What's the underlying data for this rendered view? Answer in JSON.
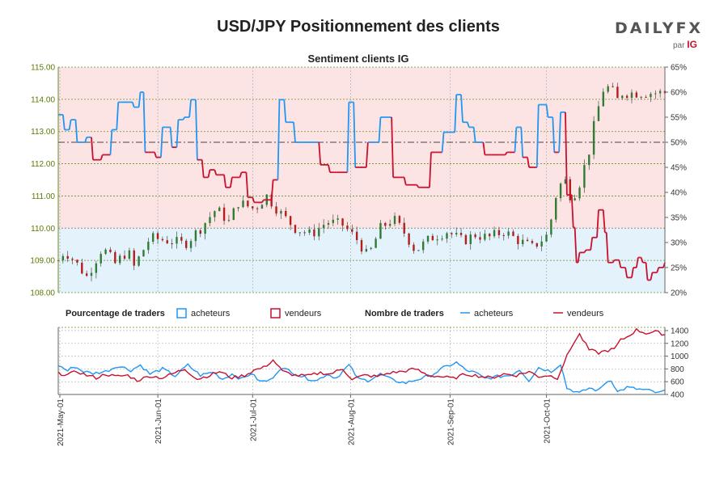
{
  "header": {
    "title": "USD/JPY Positionnement des clients",
    "logo_text": "DAILYFX",
    "logo_sub": "par",
    "logo_ig": "IG"
  },
  "colors": {
    "buyers": "#2196f3",
    "sellers": "#c8102e",
    "candle_up": "#2e7d32",
    "candle_down": "#b71c1c",
    "bg_top": "#fde4e4",
    "bg_bottom": "#e4f2fb",
    "axis_left": "#5a7a00"
  },
  "chart_data": [
    {
      "type": "candlestick+line",
      "title": "Sentiment clients IG",
      "price_axis": {
        "ylim": [
          108.0,
          115.0
        ],
        "ticks": [
          "108.00",
          "109.00",
          "110.00",
          "111.00",
          "112.00",
          "113.00",
          "114.00",
          "115.00"
        ]
      },
      "sentiment_axis": {
        "ylim": [
          20,
          65
        ],
        "ticks": [
          "20%",
          "25%",
          "30%",
          "35%",
          "40%",
          "45%",
          "50%",
          "55%",
          "60%",
          "65%"
        ]
      },
      "reference_price": 110.0,
      "reference_sentiment": 50,
      "x_dates": [
        "2021-May-01",
        "2021-Jun-01",
        "2021-Jul-01",
        "2021-Aug-01",
        "2021-Sep-01",
        "2021-Oct-01"
      ],
      "price_close_knots": [
        [
          0,
          109.0
        ],
        [
          4,
          109.3
        ],
        [
          10,
          109.0
        ],
        [
          18,
          108.5
        ],
        [
          28,
          109.4
        ],
        [
          36,
          108.9
        ],
        [
          44,
          109.3
        ],
        [
          48,
          108.8
        ],
        [
          58,
          109.7
        ],
        [
          72,
          109.6
        ],
        [
          80,
          109.5
        ],
        [
          90,
          110.0
        ],
        [
          100,
          110.6
        ],
        [
          108,
          110.2
        ],
        [
          114,
          110.8
        ],
        [
          124,
          110.6
        ],
        [
          132,
          111.0
        ],
        [
          140,
          110.5
        ],
        [
          150,
          110.0
        ],
        [
          160,
          109.8
        ],
        [
          170,
          110.2
        ],
        [
          180,
          110.1
        ],
        [
          190,
          109.6
        ],
        [
          196,
          109.1
        ],
        [
          204,
          110.0
        ],
        [
          212,
          110.3
        ],
        [
          220,
          109.8
        ],
        [
          226,
          109.3
        ],
        [
          236,
          109.7
        ],
        [
          246,
          109.9
        ],
        [
          256,
          109.6
        ],
        [
          264,
          109.8
        ],
        [
          272,
          109.7
        ],
        [
          282,
          109.9
        ],
        [
          292,
          109.6
        ],
        [
          300,
          109.4
        ],
        [
          305,
          109.6
        ],
        [
          310,
          109.8
        ],
        [
          315,
          111.0
        ],
        [
          320,
          111.6
        ],
        [
          325,
          110.9
        ],
        [
          330,
          111.4
        ],
        [
          336,
          112.4
        ],
        [
          340,
          113.4
        ],
        [
          345,
          114.3
        ],
        [
          350,
          114.4
        ],
        [
          353,
          113.9
        ],
        [
          357,
          114.2
        ]
      ],
      "sentiment_buyers_pct_knots": [
        [
          0,
          55.5
        ],
        [
          4,
          52.5
        ],
        [
          8,
          54.5
        ],
        [
          12,
          50.0
        ],
        [
          18,
          51.0
        ],
        [
          22,
          46.5
        ],
        [
          28,
          47.5
        ],
        [
          34,
          52.5
        ],
        [
          38,
          58.0
        ],
        [
          44,
          58.0
        ],
        [
          48,
          57.0
        ],
        [
          52,
          60.0
        ],
        [
          55,
          48.0
        ],
        [
          62,
          47.0
        ],
        [
          66,
          53.0
        ],
        [
          72,
          49.0
        ],
        [
          76,
          54.5
        ],
        [
          80,
          55.0
        ],
        [
          84,
          58.5
        ],
        [
          88,
          46.5
        ],
        [
          92,
          43.0
        ],
        [
          96,
          44.5
        ],
        [
          100,
          43.5
        ],
        [
          106,
          41.0
        ],
        [
          110,
          43.0
        ],
        [
          116,
          44.0
        ],
        [
          120,
          39.0
        ],
        [
          124,
          38.0
        ],
        [
          130,
          38.5
        ],
        [
          136,
          42.5
        ],
        [
          140,
          58.5
        ],
        [
          144,
          54.0
        ],
        [
          150,
          50.0
        ],
        [
          158,
          50.0
        ],
        [
          166,
          45.5
        ],
        [
          172,
          44.0
        ],
        [
          178,
          44.0
        ],
        [
          184,
          58.0
        ],
        [
          188,
          45.0
        ],
        [
          196,
          50.0
        ],
        [
          204,
          55.0
        ],
        [
          212,
          43.0
        ],
        [
          220,
          41.5
        ],
        [
          228,
          41.0
        ],
        [
          236,
          48.0
        ],
        [
          244,
          52.0
        ],
        [
          252,
          59.5
        ],
        [
          256,
          54.0
        ],
        [
          260,
          53.0
        ],
        [
          264,
          50.0
        ],
        [
          270,
          47.5
        ],
        [
          276,
          47.5
        ],
        [
          284,
          48.0
        ],
        [
          290,
          53.0
        ],
        [
          294,
          47.0
        ],
        [
          298,
          45.0
        ],
        [
          304,
          57.5
        ],
        [
          310,
          55.0
        ],
        [
          314,
          48.0
        ],
        [
          318,
          56.0
        ],
        [
          322,
          39.5
        ],
        [
          326,
          33.0
        ],
        [
          328,
          26.0
        ],
        [
          330,
          28.0
        ],
        [
          334,
          28.5
        ],
        [
          338,
          31.0
        ],
        [
          342,
          36.5
        ],
        [
          346,
          32.0
        ],
        [
          348,
          26.0
        ],
        [
          352,
          26.5
        ],
        [
          356,
          25.0
        ],
        [
          360,
          23.0
        ],
        [
          364,
          25.0
        ],
        [
          367,
          27.0
        ],
        [
          370,
          26.0
        ],
        [
          373,
          22.5
        ],
        [
          376,
          24.0
        ],
        [
          380,
          25.0
        ],
        [
          384,
          26.0
        ]
      ]
    },
    {
      "type": "line",
      "title": "Nombre de traders",
      "ylim": [
        400,
        1450
      ],
      "ticks": [
        "400",
        "600",
        "800",
        "1000",
        "1200",
        "1400"
      ],
      "series": [
        {
          "name": "acheteurs",
          "color": "#2196f3",
          "knots": [
            [
              0,
              860
            ],
            [
              6,
              770
            ],
            [
              10,
              840
            ],
            [
              16,
              760
            ],
            [
              22,
              730
            ],
            [
              30,
              760
            ],
            [
              38,
              850
            ],
            [
              46,
              780
            ],
            [
              52,
              860
            ],
            [
              58,
              720
            ],
            [
              66,
              800
            ],
            [
              74,
              690
            ],
            [
              82,
              860
            ],
            [
              90,
              700
            ],
            [
              98,
              750
            ],
            [
              104,
              640
            ],
            [
              110,
              720
            ],
            [
              116,
              640
            ],
            [
              122,
              730
            ],
            [
              128,
              600
            ],
            [
              134,
              620
            ],
            [
              140,
              800
            ],
            [
              146,
              780
            ],
            [
              152,
              700
            ],
            [
              158,
              650
            ],
            [
              164,
              620
            ],
            [
              170,
              720
            ],
            [
              176,
              660
            ],
            [
              184,
              860
            ],
            [
              190,
              640
            ],
            [
              196,
              620
            ],
            [
              204,
              720
            ],
            [
              212,
              620
            ],
            [
              220,
              580
            ],
            [
              228,
              640
            ],
            [
              236,
              700
            ],
            [
              244,
              820
            ],
            [
              252,
              900
            ],
            [
              258,
              780
            ],
            [
              264,
              740
            ],
            [
              270,
              650
            ],
            [
              278,
              680
            ],
            [
              286,
              700
            ],
            [
              292,
              790
            ],
            [
              298,
              620
            ],
            [
              304,
              820
            ],
            [
              312,
              760
            ],
            [
              318,
              880
            ],
            [
              322,
              500
            ],
            [
              326,
              460
            ],
            [
              330,
              420
            ],
            [
              336,
              500
            ],
            [
              342,
              460
            ],
            [
              346,
              580
            ],
            [
              350,
              630
            ],
            [
              354,
              440
            ],
            [
              360,
              510
            ],
            [
              368,
              480
            ],
            [
              374,
              460
            ],
            [
              380,
              420
            ],
            [
              384,
              460
            ]
          ]
        },
        {
          "name": "vendeurs",
          "color": "#c8102e",
          "knots": [
            [
              0,
              730
            ],
            [
              6,
              710
            ],
            [
              12,
              760
            ],
            [
              18,
              700
            ],
            [
              24,
              660
            ],
            [
              30,
              720
            ],
            [
              36,
              680
            ],
            [
              44,
              700
            ],
            [
              50,
              620
            ],
            [
              58,
              690
            ],
            [
              66,
              660
            ],
            [
              72,
              720
            ],
            [
              80,
              800
            ],
            [
              88,
              640
            ],
            [
              96,
              700
            ],
            [
              102,
              760
            ],
            [
              110,
              660
            ],
            [
              118,
              700
            ],
            [
              124,
              780
            ],
            [
              130,
              820
            ],
            [
              136,
              940
            ],
            [
              142,
              760
            ],
            [
              150,
              700
            ],
            [
              158,
              690
            ],
            [
              166,
              740
            ],
            [
              172,
              720
            ],
            [
              180,
              800
            ],
            [
              186,
              640
            ],
            [
              194,
              700
            ],
            [
              202,
              680
            ],
            [
              210,
              740
            ],
            [
              218,
              760
            ],
            [
              226,
              800
            ],
            [
              234,
              700
            ],
            [
              242,
              680
            ],
            [
              250,
              650
            ],
            [
              258,
              720
            ],
            [
              266,
              690
            ],
            [
              274,
              660
            ],
            [
              282,
              720
            ],
            [
              290,
              700
            ],
            [
              298,
              760
            ],
            [
              304,
              680
            ],
            [
              310,
              700
            ],
            [
              316,
              660
            ],
            [
              322,
              1000
            ],
            [
              326,
              1200
            ],
            [
              330,
              1340
            ],
            [
              336,
              1100
            ],
            [
              342,
              1050
            ],
            [
              346,
              1080
            ],
            [
              352,
              1110
            ],
            [
              356,
              1250
            ],
            [
              360,
              1300
            ],
            [
              366,
              1410
            ],
            [
              372,
              1360
            ],
            [
              378,
              1380
            ],
            [
              384,
              1340
            ]
          ]
        }
      ]
    }
  ],
  "subtitle": "Sentiment clients IG",
  "legend": {
    "pct_label": "Pourcentage de traders",
    "buyers": "acheteurs",
    "sellers": "vendeurs",
    "count_label": "Nombre de traders",
    "buyers2": "acheteurs",
    "sellers2": "vendeurs"
  },
  "x_labels": [
    "2021-May-01",
    "2021-Jun-01",
    "2021-Jul-01",
    "2021-Aug-01",
    "2021-Sep-01",
    "2021-Oct-01"
  ],
  "price_ticks": [
    "108.00",
    "109.00",
    "110.00",
    "111.00",
    "112.00",
    "113.00",
    "114.00",
    "115.00"
  ],
  "pct_ticks": [
    "20%",
    "25%",
    "30%",
    "35%",
    "40%",
    "45%",
    "50%",
    "55%",
    "60%",
    "65%"
  ],
  "count_ticks": [
    "400",
    "600",
    "800",
    "1000",
    "1200",
    "1400"
  ]
}
